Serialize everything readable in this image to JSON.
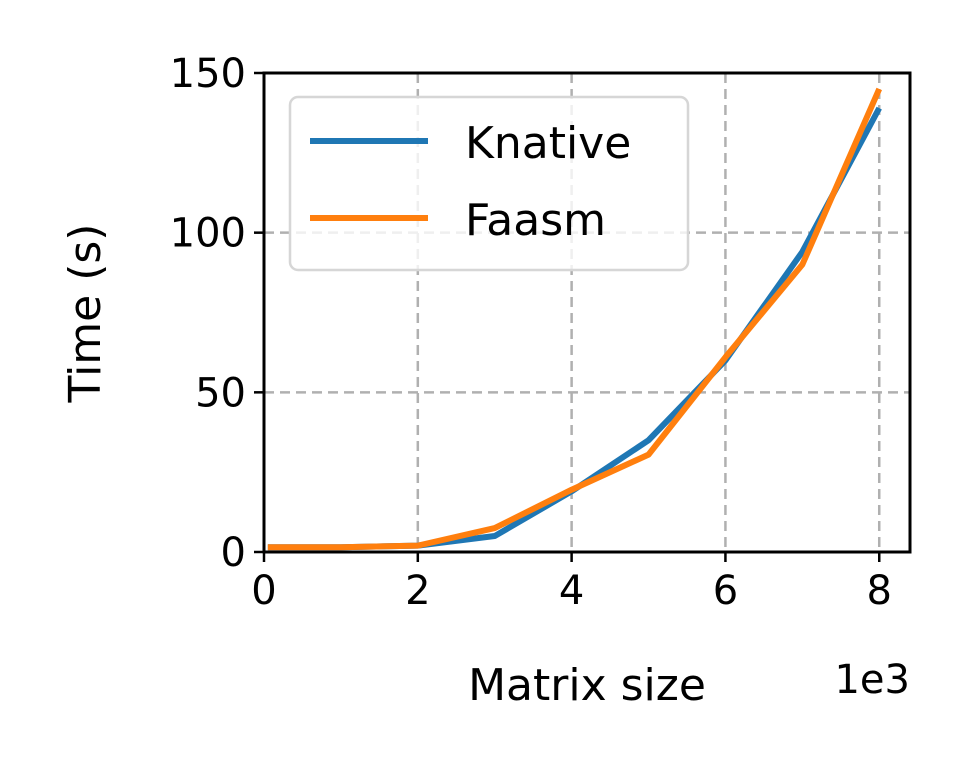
{
  "chart_data": {
    "type": "line",
    "xlabel": "Matrix size",
    "ylabel": "Time (s)",
    "x_offset_label": "1e3",
    "xlim": [
      0,
      8.4
    ],
    "ylim": [
      0,
      150
    ],
    "xticks": [
      "0",
      "2",
      "4",
      "6",
      "8"
    ],
    "yticks": [
      "0",
      "50",
      "100",
      "150"
    ],
    "grid": true,
    "legend_position": "upper-left",
    "series": [
      {
        "name": "Knative",
        "color": "#1f77b4",
        "x": [
          0.05,
          1,
          2,
          3,
          4,
          5,
          6,
          7,
          8
        ],
        "y": [
          1.5,
          1.5,
          2,
          5,
          19,
          35,
          60,
          94,
          139
        ]
      },
      {
        "name": "Faasm",
        "color": "#ff7f0e",
        "x": [
          0.05,
          1,
          2,
          3,
          4,
          5,
          6,
          7,
          8
        ],
        "y": [
          1.5,
          1.5,
          2,
          7.5,
          19.5,
          30.5,
          61,
          90,
          145
        ]
      }
    ]
  }
}
